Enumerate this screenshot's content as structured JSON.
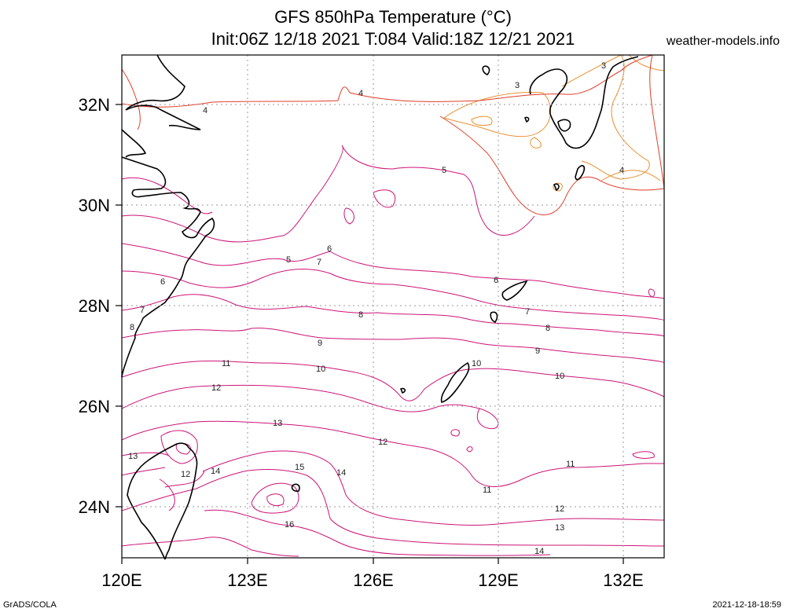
{
  "header": {
    "title_line1": "GFS 850hPa Temperature (°C)",
    "title_line2": "Init:06Z 12/18 2021 T:084 Valid:18Z 12/21 2021",
    "site": "weather-models.info"
  },
  "footer": {
    "left": "GrADS/COLA",
    "right": "2021-12-18-18:59"
  },
  "map": {
    "lon_range": [
      120,
      133
    ],
    "lat_range": [
      23,
      33
    ],
    "lon_ticks": [
      "120E",
      "123E",
      "126E",
      "129E",
      "132E"
    ],
    "lat_ticks": [
      "24N",
      "26N",
      "28N",
      "30N",
      "32N"
    ],
    "grid": true,
    "contour_labels": [
      "3",
      "3",
      "4",
      "4",
      "4",
      "5",
      "5",
      "6",
      "6",
      "7",
      "7",
      "8",
      "8",
      "9",
      "9",
      "10",
      "10",
      "10",
      "11",
      "11",
      "11",
      "12",
      "12",
      "12",
      "13",
      "13",
      "14",
      "14",
      "14",
      "15",
      "16"
    ],
    "colors": {
      "warm_orange": "#e89030",
      "red": "#e03c28",
      "magenta": "#cc1477",
      "coast": "#000000"
    }
  }
}
